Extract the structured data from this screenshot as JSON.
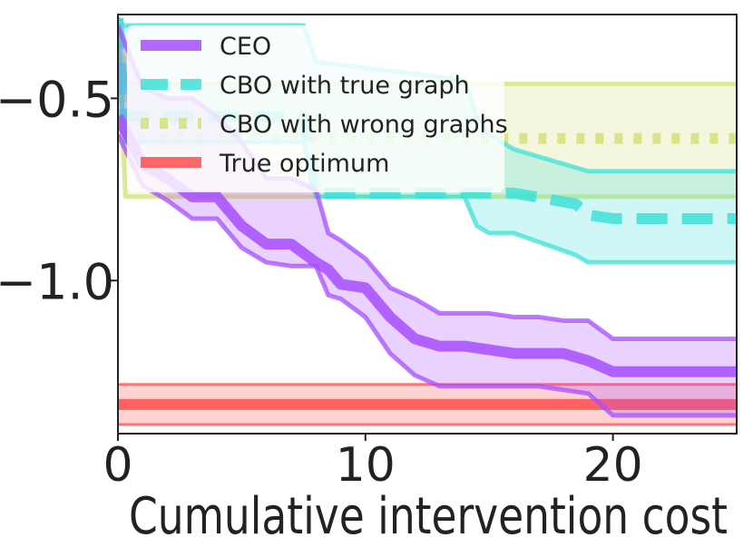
{
  "chart_data": {
    "type": "line",
    "title": "",
    "xlabel": "Cumulative intervention cost",
    "ylabel": "",
    "xlim": [
      0,
      25
    ],
    "ylim": [
      -1.42,
      -0.27
    ],
    "grid": false,
    "legend_position": "top-left",
    "x_ticks": [
      {
        "value": 0,
        "label": "0"
      },
      {
        "value": 10,
        "label": "10"
      },
      {
        "value": 20,
        "label": "20"
      }
    ],
    "y_ticks": [
      {
        "value": -0.5,
        "label": "−0.5"
      },
      {
        "value": -1.0,
        "label": "−1.0"
      }
    ],
    "series": [
      {
        "name": "True optimum",
        "color": "#ff4d4d",
        "style": "solid",
        "x": [
          0,
          25
        ],
        "y": [
          -1.34,
          -1.34
        ],
        "lower": [
          -1.395,
          -1.395
        ],
        "upper": [
          -1.285,
          -1.285
        ]
      },
      {
        "name": "CBO with wrong graphs",
        "color": "#d4e07a",
        "style": "dotted",
        "x": [
          0,
          0.3,
          25
        ],
        "y": [
          -0.28,
          -0.61,
          -0.61
        ],
        "lower": [
          -0.28,
          -0.77,
          -0.77
        ],
        "upper": [
          -0.28,
          -0.46,
          -0.46
        ]
      },
      {
        "name": "CBO with true graph",
        "color": "#40e0d8",
        "style": "dashed",
        "x": [
          0,
          0.2,
          0.3,
          7.5,
          8,
          14,
          14.5,
          15,
          16,
          18.5,
          19,
          20,
          25
        ],
        "y": [
          -0.28,
          -0.5,
          -0.55,
          -0.55,
          -0.76,
          -0.76,
          -0.76,
          -0.76,
          -0.76,
          -0.79,
          -0.82,
          -0.83,
          -0.83
        ],
        "lower": [
          -0.28,
          -0.56,
          -0.62,
          -0.62,
          -0.77,
          -0.77,
          -0.85,
          -0.87,
          -0.87,
          -0.93,
          -0.95,
          -0.95,
          -0.95
        ],
        "upper": [
          -0.28,
          -0.3,
          -0.3,
          -0.3,
          -0.4,
          -0.45,
          -0.55,
          -0.6,
          -0.64,
          -0.69,
          -0.7,
          -0.7,
          -0.7
        ]
      },
      {
        "name": "CEO",
        "color": "#a64dff",
        "style": "solid",
        "x": [
          0,
          1,
          2,
          3,
          4,
          5,
          6,
          7,
          8,
          8.5,
          9,
          10,
          11,
          12,
          13,
          14,
          15,
          16,
          17,
          18,
          19,
          20,
          25
        ],
        "y": [
          -0.55,
          -0.68,
          -0.72,
          -0.77,
          -0.77,
          -0.85,
          -0.9,
          -0.9,
          -0.95,
          -0.97,
          -1.01,
          -1.02,
          -1.1,
          -1.16,
          -1.18,
          -1.18,
          -1.19,
          -1.2,
          -1.2,
          -1.2,
          -1.22,
          -1.25,
          -1.25
        ],
        "lower": [
          -0.6,
          -0.74,
          -0.78,
          -0.83,
          -0.83,
          -0.91,
          -0.95,
          -0.96,
          -0.96,
          -1.04,
          -1.05,
          -1.1,
          -1.2,
          -1.26,
          -1.29,
          -1.29,
          -1.29,
          -1.29,
          -1.29,
          -1.3,
          -1.31,
          -1.37,
          -1.37
        ],
        "upper": [
          -0.3,
          -0.47,
          -0.5,
          -0.5,
          -0.55,
          -0.62,
          -0.72,
          -0.72,
          -0.75,
          -0.87,
          -0.89,
          -0.94,
          -1.02,
          -1.05,
          -1.09,
          -1.09,
          -1.09,
          -1.1,
          -1.1,
          -1.11,
          -1.11,
          -1.16,
          -1.16
        ]
      }
    ],
    "legend": [
      {
        "label": "CEO",
        "color": "#a64dff",
        "style": "solid"
      },
      {
        "label": "CBO with true graph",
        "color": "#40e0d8",
        "style": "dashed"
      },
      {
        "label": "CBO with wrong graphs",
        "color": "#d4e07a",
        "style": "dotted"
      },
      {
        "label": "True optimum",
        "color": "#ff4d4d",
        "style": "solid"
      }
    ]
  }
}
